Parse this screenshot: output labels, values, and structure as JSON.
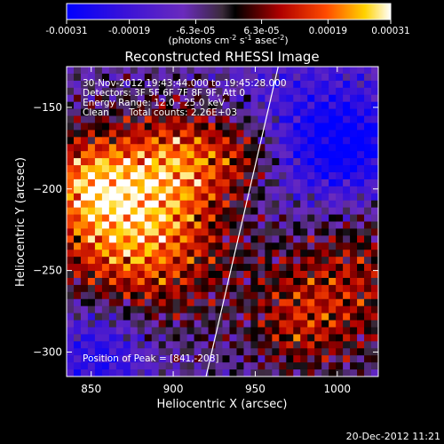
{
  "chart_data": {
    "type": "heatmap",
    "title": "Reconstructed RHESSI Image",
    "xlabel": "Heliocentric X (arcsec)",
    "ylabel": "Heliocentric Y (arcsec)",
    "xlim": [
      835,
      1025
    ],
    "ylim": [
      -315,
      -125
    ],
    "x_ticks": [
      850,
      900,
      950,
      1000
    ],
    "y_ticks": [
      -150,
      -200,
      -250,
      -300
    ],
    "colorbar": {
      "min": -0.00031,
      "max": 0.00031,
      "tick_values": [
        -0.00031,
        -0.00019,
        -6.3e-05,
        6.3e-05,
        0.00019,
        0.00031
      ],
      "tick_labels": [
        "-0.00031",
        "-0.00019",
        "-6.3e-05",
        "6.3e-05",
        "0.00019",
        "0.00031"
      ],
      "unit_label": "(photons cm",
      "unit_exp1": "-2",
      "unit_mid": " s",
      "unit_exp2": "-1",
      "unit_mid2": " asec",
      "unit_exp3": "-2",
      "unit_end": ")"
    },
    "annotations": {
      "time_range": "30-Nov-2012 19:43:44.000 to 19:45:28.000",
      "detectors": "Detectors: 3F 5F 6F 7F 8F 9F, Att 0",
      "energy": "Energy Range: 12.0 - 25.0 keV",
      "clean": "Clean",
      "total_counts": "Total counts: 2.26E+03",
      "peak": "Position of Peak = [841,-208]"
    },
    "limb_line": {
      "x": [
        920,
        964
      ],
      "y": [
        -315,
        -125
      ]
    },
    "hot_regions": [
      {
        "x": 878,
        "y": -225,
        "amplitude": 1.0,
        "sigma": 38
      },
      {
        "x": 850,
        "y": -195,
        "amplitude": 0.6,
        "sigma": 20
      },
      {
        "x": 905,
        "y": -180,
        "amplitude": 0.55,
        "sigma": 22
      },
      {
        "x": 945,
        "y": -178,
        "amplitude": 0.5,
        "sigma": 18
      },
      {
        "x": 1005,
        "y": -255,
        "amplitude": 0.55,
        "sigma": 35
      },
      {
        "x": 975,
        "y": -285,
        "amplitude": 0.35,
        "sigma": 20
      }
    ],
    "cold_regions": [
      {
        "x": 985,
        "y": -170,
        "amplitude": -0.55,
        "sigma": 35
      },
      {
        "x": 855,
        "y": -300,
        "amplitude": -0.6,
        "sigma": 22
      },
      {
        "x": 1010,
        "y": -175,
        "amplitude": -0.45,
        "sigma": 20
      }
    ]
  },
  "footer": {
    "timestamp": "20-Dec-2012 11:21"
  }
}
